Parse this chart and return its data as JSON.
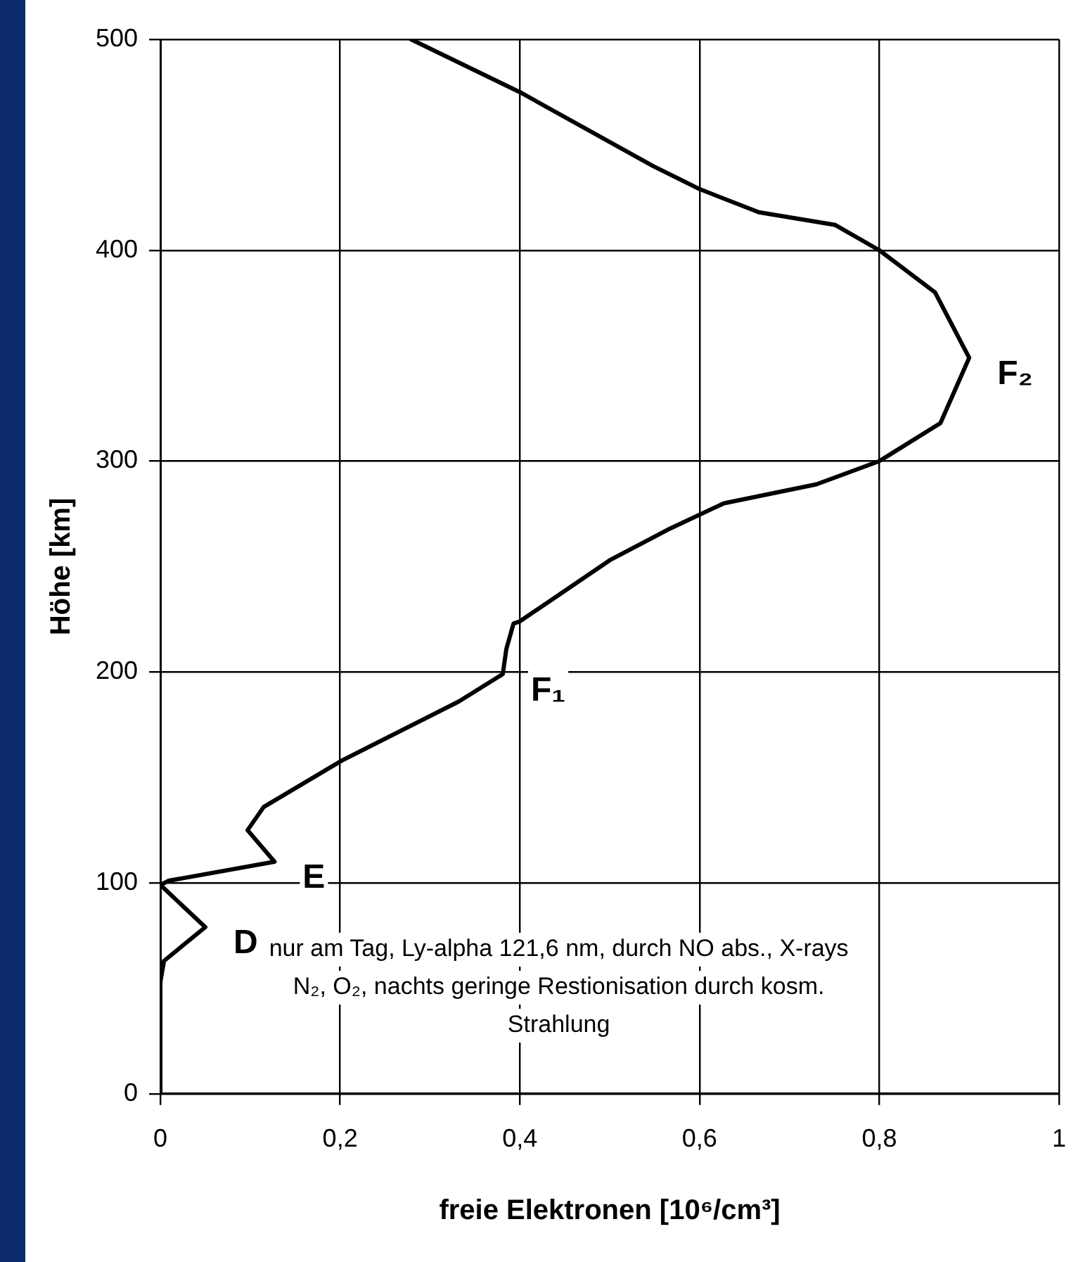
{
  "chart_data": {
    "type": "line",
    "xlabel": "freie Elektronen [10⁶/cm³]",
    "ylabel": "Höhe [km]",
    "series": [
      {
        "color": "#000000",
        "x": [
          0.279,
          0.4,
          0.548,
          0.6,
          0.666,
          0.751,
          0.8,
          0.862,
          0.9,
          0.868,
          0.8,
          0.73,
          0.627,
          0.567,
          0.5,
          0.4,
          0.393,
          0.385,
          0.381,
          0.332,
          0.202,
          0.115,
          0.097,
          0.127,
          0.009,
          0,
          0.05,
          0.004,
          0,
          0
        ],
        "values": [
          500,
          475,
          440,
          429,
          418,
          412,
          400,
          380,
          349,
          318,
          300,
          289,
          280,
          268,
          253,
          224,
          223,
          211,
          199,
          186,
          158,
          136,
          125,
          110,
          101,
          99,
          79,
          63,
          53,
          1
        ]
      }
    ],
    "xlim": [
      0,
      1
    ],
    "ylim": [
      0,
      500
    ],
    "xticks": [
      0,
      {
        "value": 0.2,
        "label": "0,2"
      },
      {
        "value": 0.4,
        "label": "0,4"
      },
      {
        "value": 0.6,
        "label": "0,6"
      },
      {
        "value": 0.8,
        "label": "0,8"
      },
      1
    ],
    "yticks": [
      0,
      100,
      200,
      300,
      400,
      500
    ],
    "grid": true,
    "legend": false,
    "marker": "none",
    "line_style": "solid",
    "annotations": [
      {
        "text": "F₂",
        "x": 0.9,
        "y": 349
      },
      {
        "text": "F₁",
        "x": 0.381,
        "y": 199
      },
      {
        "text": "E",
        "x": 0.127,
        "y": 110
      },
      {
        "text": "D",
        "x": 0.05,
        "y": 79
      },
      "nur am Tag, Ly-alpha 121,6 nm, durch NO abs., X-rays N₂, O₂, nachts geringe Restionisation durch kosm. Strahlung"
    ]
  }
}
